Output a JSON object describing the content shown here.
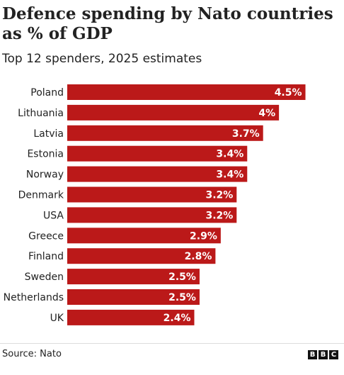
{
  "title": "Defence spending by Nato countries as % of GDP",
  "subtitle": "Top 12 spenders, 2025 estimates",
  "source": "Source: Nato",
  "logo": [
    "B",
    "B",
    "C"
  ],
  "colors": {
    "bar": "#bb1919",
    "label": "#222222",
    "value_text": "#ffffff"
  },
  "chart_data": {
    "type": "bar",
    "orientation": "horizontal",
    "title": "Defence spending by Nato countries as % of GDP",
    "subtitle": "Top 12 spenders, 2025 estimates",
    "categories": [
      "Poland",
      "Lithuania",
      "Latvia",
      "Estonia",
      "Norway",
      "Denmark",
      "USA",
      "Greece",
      "Finland",
      "Sweden",
      "Netherlands",
      "UK"
    ],
    "values": [
      4.5,
      4,
      3.7,
      3.4,
      3.4,
      3.2,
      3.2,
      2.9,
      2.8,
      2.5,
      2.5,
      2.4
    ],
    "value_labels": [
      "4.5%",
      "4%",
      "3.7%",
      "3.4%",
      "3.4%",
      "3.2%",
      "3.2%",
      "2.9%",
      "2.8%",
      "2.5%",
      "2.5%",
      "2.4%"
    ],
    "xlabel": "",
    "ylabel": "",
    "xlim": [
      0,
      4.6
    ],
    "grid": false,
    "legend": "none"
  }
}
